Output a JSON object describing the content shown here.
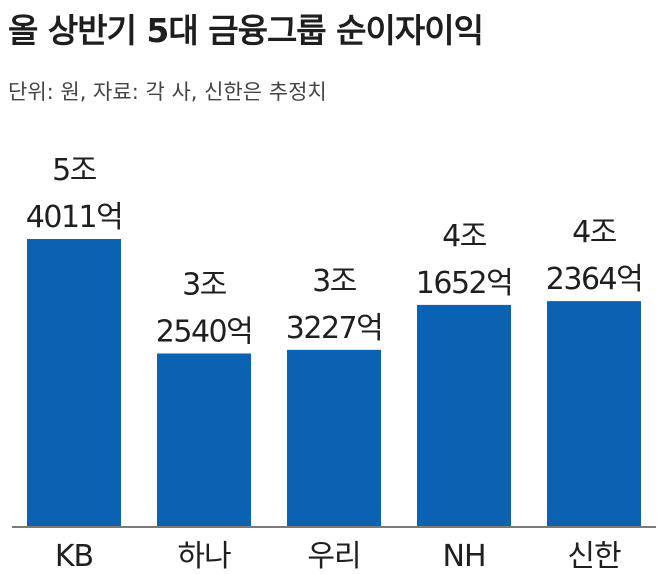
{
  "title": "올 상반기 5대 금융그룹 순이자이익",
  "subtitle": "단위: 원, 자료: 각 사, 신한은 추정치",
  "colors": {
    "bar": "#0b62b3",
    "axis": "#7a7a7a"
  },
  "chart_data": {
    "type": "bar",
    "title": "올 상반기 5대 금융그룹 순이자이익",
    "unit": "억 원",
    "categories": [
      "KB",
      "하나",
      "우리",
      "NH",
      "신한"
    ],
    "values": [
      54011,
      32540,
      33227,
      41652,
      42364
    ],
    "labels": [
      [
        "5조",
        "4011억"
      ],
      [
        "3조",
        "2540억"
      ],
      [
        "3조",
        "3227억"
      ],
      [
        "4조",
        "1652억"
      ],
      [
        "4조",
        "2364억"
      ]
    ],
    "ylim": [
      0,
      60000
    ],
    "grid": false,
    "legend": "none"
  }
}
